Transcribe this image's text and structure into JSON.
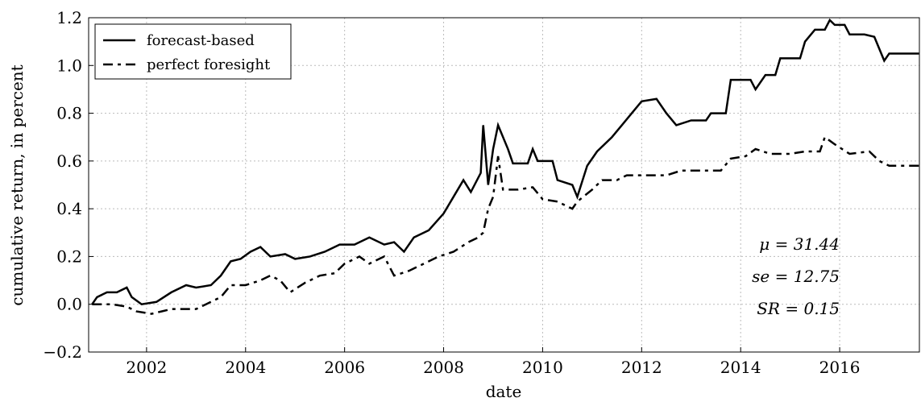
{
  "chart_data": {
    "type": "line",
    "xlabel": "date",
    "ylabel": "cumulative return, in percent",
    "xlim": [
      2000.83,
      2017.61
    ],
    "xticks": [
      2002,
      2004,
      2006,
      2008,
      2010,
      2012,
      2014,
      2016
    ],
    "ylim": [
      -0.2,
      1.2
    ],
    "yticks": [
      {
        "value": -0.2,
        "label": "−0.2"
      },
      {
        "value": 0,
        "label": "0.0"
      },
      0.2,
      0.4,
      0.6,
      0.8,
      {
        "value": 1,
        "label": "1.0"
      },
      1.2
    ],
    "grid": true,
    "legend": "upper left",
    "annotations": [
      "μ = 31.44",
      "se = 12.75",
      "SR = 0.15"
    ],
    "series": [
      {
        "name": "forecast-based",
        "color": "#000000",
        "dash": "solid",
        "x": [
          2000.9,
          2001.0,
          2001.2,
          2001.4,
          2001.6,
          2001.7,
          2001.9,
          2002.2,
          2002.5,
          2002.8,
          2003.0,
          2003.3,
          2003.5,
          2003.7,
          2003.9,
          2004.1,
          2004.3,
          2004.5,
          2004.8,
          2005.0,
          2005.3,
          2005.6,
          2005.9,
          2006.2,
          2006.5,
          2006.8,
          2007.0,
          2007.2,
          2007.4,
          2007.7,
          2008.0,
          2008.2,
          2008.4,
          2008.55,
          2008.75,
          2008.8,
          2008.9,
          2009.0,
          2009.1,
          2009.3,
          2009.4,
          2009.7,
          2009.8,
          2009.9,
          2010.2,
          2010.3,
          2010.6,
          2010.7,
          2010.9,
          2011.1,
          2011.4,
          2011.6,
          2011.8,
          2012.0,
          2012.3,
          2012.5,
          2012.7,
          2013.0,
          2013.3,
          2013.4,
          2013.7,
          2013.8,
          2014.2,
          2014.3,
          2014.5,
          2014.7,
          2014.8,
          2015.2,
          2015.3,
          2015.5,
          2015.7,
          2015.8,
          2015.9,
          2016.1,
          2016.2,
          2016.5,
          2016.7,
          2016.9,
          2017.0,
          2017.6
        ],
        "values": [
          0,
          0.03,
          0.05,
          0.05,
          0.07,
          0.03,
          0.0,
          0.01,
          0.05,
          0.08,
          0.07,
          0.08,
          0.12,
          0.18,
          0.19,
          0.22,
          0.24,
          0.2,
          0.21,
          0.19,
          0.2,
          0.22,
          0.25,
          0.25,
          0.28,
          0.25,
          0.26,
          0.22,
          0.28,
          0.31,
          0.38,
          0.45,
          0.52,
          0.47,
          0.55,
          0.75,
          0.5,
          0.65,
          0.75,
          0.65,
          0.59,
          0.59,
          0.65,
          0.6,
          0.6,
          0.52,
          0.5,
          0.45,
          0.58,
          0.64,
          0.7,
          0.75,
          0.8,
          0.85,
          0.86,
          0.8,
          0.75,
          0.77,
          0.77,
          0.8,
          0.8,
          0.94,
          0.94,
          0.9,
          0.96,
          0.96,
          1.03,
          1.03,
          1.1,
          1.15,
          1.15,
          1.19,
          1.17,
          1.17,
          1.13,
          1.13,
          1.12,
          1.02,
          1.05,
          1.05
        ]
      },
      {
        "name": "perfect foresight",
        "color": "#000000",
        "dash": "dashed",
        "x": [
          2000.9,
          2001.3,
          2001.6,
          2001.8,
          2002.1,
          2002.3,
          2002.5,
          2002.8,
          2003.0,
          2003.2,
          2003.5,
          2003.7,
          2004.0,
          2004.3,
          2004.5,
          2004.7,
          2004.9,
          2005.2,
          2005.5,
          2005.8,
          2006.0,
          2006.3,
          2006.5,
          2006.8,
          2007.0,
          2007.3,
          2007.6,
          2007.9,
          2008.2,
          2008.5,
          2008.7,
          2008.8,
          2008.9,
          2009.0,
          2009.1,
          2009.2,
          2009.5,
          2009.8,
          2010.0,
          2010.3,
          2010.6,
          2010.7,
          2011.0,
          2011.2,
          2011.5,
          2011.7,
          2012.0,
          2012.5,
          2012.8,
          2013.3,
          2013.6,
          2013.8,
          2014.1,
          2014.3,
          2014.6,
          2015.0,
          2015.3,
          2015.6,
          2015.7,
          2015.9,
          2016.2,
          2016.6,
          2016.8,
          2017.0,
          2017.6
        ],
        "values": [
          0,
          0,
          -0.01,
          -0.03,
          -0.04,
          -0.03,
          -0.02,
          -0.02,
          -0.02,
          0.0,
          0.03,
          0.08,
          0.08,
          0.1,
          0.12,
          0.1,
          0.05,
          0.09,
          0.12,
          0.13,
          0.17,
          0.2,
          0.17,
          0.2,
          0.12,
          0.14,
          0.17,
          0.2,
          0.22,
          0.26,
          0.28,
          0.3,
          0.4,
          0.45,
          0.62,
          0.48,
          0.48,
          0.49,
          0.44,
          0.43,
          0.4,
          0.43,
          0.48,
          0.52,
          0.52,
          0.54,
          0.54,
          0.54,
          0.56,
          0.56,
          0.56,
          0.61,
          0.62,
          0.65,
          0.63,
          0.63,
          0.64,
          0.64,
          0.7,
          0.67,
          0.63,
          0.64,
          0.6,
          0.58,
          0.58
        ]
      }
    ]
  }
}
